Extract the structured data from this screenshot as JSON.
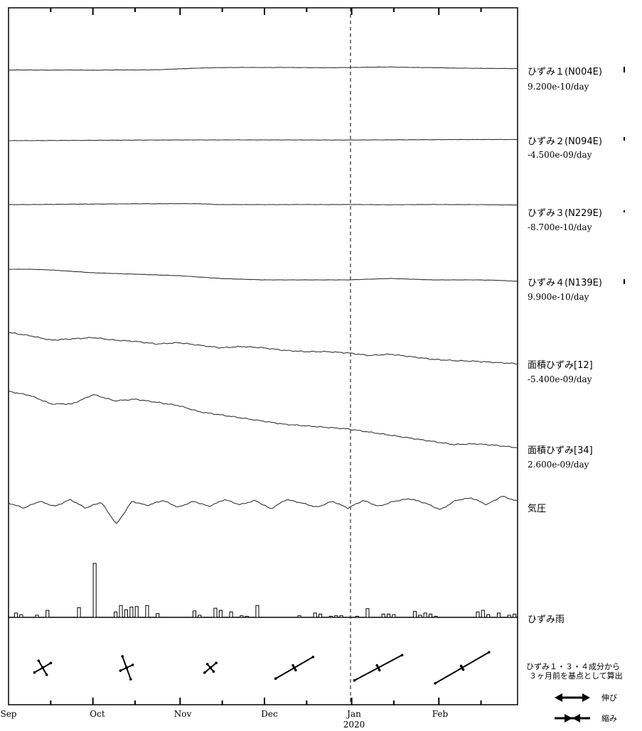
{
  "chart_data": {
    "type": "line",
    "x_axis": {
      "month_labels": [
        "Sep",
        "Oct",
        "Nov",
        "Dec",
        "Jan",
        "Feb"
      ],
      "year_label": "2020",
      "range": [
        "2019-09-01",
        "2020-02-29"
      ],
      "reference_line": "2020-01-01"
    },
    "series": [
      {
        "name": "ひずみ１(N004E)",
        "rate": "9.200e-10/day",
        "values": [
          0.5,
          0.48,
          0.45,
          0.5,
          0.4,
          0.52,
          0.5,
          0.6,
          1.0,
          1.4,
          1.6,
          1.7,
          1.65,
          1.7,
          1.6,
          1.55,
          1.65,
          1.8,
          1.9,
          1.7,
          1.6,
          1.4,
          1.3,
          1.2,
          1.15
        ]
      },
      {
        "name": "ひずみ２(N094E)",
        "rate": "-4.500e-09/day",
        "values": [
          0.0,
          0.05,
          0.1,
          0.15,
          0.2,
          0.25,
          0.3,
          0.35,
          0.38,
          0.4,
          0.4,
          0.42,
          0.4,
          0.4,
          0.38,
          0.36,
          0.35,
          0.4,
          0.45,
          0.5,
          0.55,
          0.6,
          0.62,
          0.65,
          0.6
        ]
      },
      {
        "name": "ひずみ３(N229E)",
        "rate": "-8.700e-10/day",
        "values": [
          0.0,
          0.0,
          0.1,
          0.2,
          0.25,
          0.3,
          0.4,
          0.4,
          0.45,
          0.4,
          0.0,
          0.0,
          0.0,
          0.0,
          0.05,
          0.0,
          0.05,
          0.0,
          -0.1,
          0.0,
          0.05,
          0.0,
          0.0,
          -0.1,
          -0.2
        ]
      },
      {
        "name": "ひずみ４(N139E)",
        "rate": "9.900e-10/day",
        "values": [
          0.0,
          0.0,
          -0.1,
          -0.3,
          -0.5,
          -0.6,
          -0.7,
          -0.8,
          -0.9,
          -1.1,
          -1.3,
          -1.4,
          -1.5,
          -1.5,
          -1.5,
          -1.5,
          -1.5,
          -1.4,
          -1.3,
          -1.4,
          -1.5,
          -1.5,
          -1.5,
          -1.55,
          -1.7
        ]
      },
      {
        "name": "面積ひずみ[12]",
        "rate": "-5.400e-09/day",
        "values": [
          0.0,
          -0.5,
          -1.2,
          -1.0,
          -0.8,
          -1.2,
          -1.4,
          -1.8,
          -1.6,
          -2.0,
          -2.4,
          -2.2,
          -2.4,
          -2.8,
          -3.0,
          -3.0,
          -3.2,
          -3.6,
          -3.4,
          -3.8,
          -4.2,
          -4.4,
          -4.5,
          -4.7,
          -4.9
        ]
      },
      {
        "name": "面積ひずみ[34]",
        "rate": "2.600e-09/day",
        "values": [
          0.0,
          -0.5,
          -1.6,
          -1.6,
          -0.4,
          -1.2,
          -1.0,
          -1.4,
          -1.8,
          -2.6,
          -3.0,
          -3.4,
          -3.8,
          -4.2,
          -4.4,
          -4.6,
          -4.8,
          -5.2,
          -5.6,
          -6.0,
          -6.4,
          -6.8,
          -6.7,
          -6.9,
          -7.2
        ]
      },
      {
        "name": "気圧",
        "rate": "",
        "values": [
          0.0,
          -0.6,
          0.2,
          -0.4,
          0.4,
          -0.6,
          0.1,
          -2.5,
          0.2,
          -0.3,
          0.3,
          -0.5,
          0.2,
          -0.4,
          0.4,
          -0.2,
          0.3,
          -0.7,
          0.4,
          0.0,
          -0.5,
          0.2,
          -0.6,
          0.3,
          -0.4,
          0.2,
          0.5,
          0.0,
          -0.8,
          0.3,
          0.6,
          -0.2,
          0.8,
          0.2
        ]
      }
    ],
    "rainfall": {
      "name": "ひずみ雨",
      "values": [
        0,
        0.08,
        0.05,
        0,
        0,
        0.04,
        0,
        0.13,
        0,
        0,
        0,
        0,
        0,
        0.18,
        0,
        0,
        1.0,
        0,
        0,
        0,
        0.1,
        0.22,
        0.14,
        0.19,
        0.2,
        0,
        0.22,
        0,
        0.07,
        0,
        0,
        0,
        0,
        0,
        0,
        0.12,
        0.04,
        0,
        0,
        0.17,
        0.13,
        0,
        0.1,
        0,
        0.03,
        0.02,
        0,
        0.22,
        0,
        0,
        0,
        0,
        0,
        0,
        0,
        0.03,
        0,
        0,
        0.08,
        0.06,
        0,
        0.02,
        0.03,
        0.03,
        0,
        0,
        0.02,
        0,
        0.16,
        0,
        0,
        0.06,
        0.06,
        0.05,
        0,
        0,
        0,
        0.11,
        0.04,
        0.08,
        0.06,
        0.02,
        0,
        0,
        0,
        0,
        0,
        0,
        0,
        0.1,
        0.13,
        0.05,
        0,
        0.08,
        0,
        0.04,
        0.06
      ]
    },
    "strain_axes": {
      "note_line1": "ひずみ１・３・４成分から",
      "note_line2": "３ヶ月前を基点として算出",
      "markers": [
        {
          "angle_ext": -30,
          "len_ext": 0.35,
          "angle_com": 60,
          "len_com": 0.3
        },
        {
          "angle_ext": -25,
          "len_ext": 0.25,
          "angle_com": 70,
          "len_com": 0.45
        },
        {
          "angle_ext": -40,
          "len_ext": 0.28,
          "angle_com": 50,
          "len_com": 0.18
        },
        {
          "angle_ext": -30,
          "len_ext": 0.8,
          "angle_com": 60,
          "len_com": 0.1
        },
        {
          "angle_ext": -28,
          "len_ext": 1.0,
          "angle_com": 62,
          "len_com": 0.1
        },
        {
          "angle_ext": -30,
          "len_ext": 1.15,
          "angle_com": 60,
          "len_com": 0.08
        }
      ],
      "legend": [
        {
          "label": "伸び",
          "kind": "extension"
        },
        {
          "label": "縮み",
          "kind": "contraction"
        }
      ]
    },
    "grid": false
  }
}
